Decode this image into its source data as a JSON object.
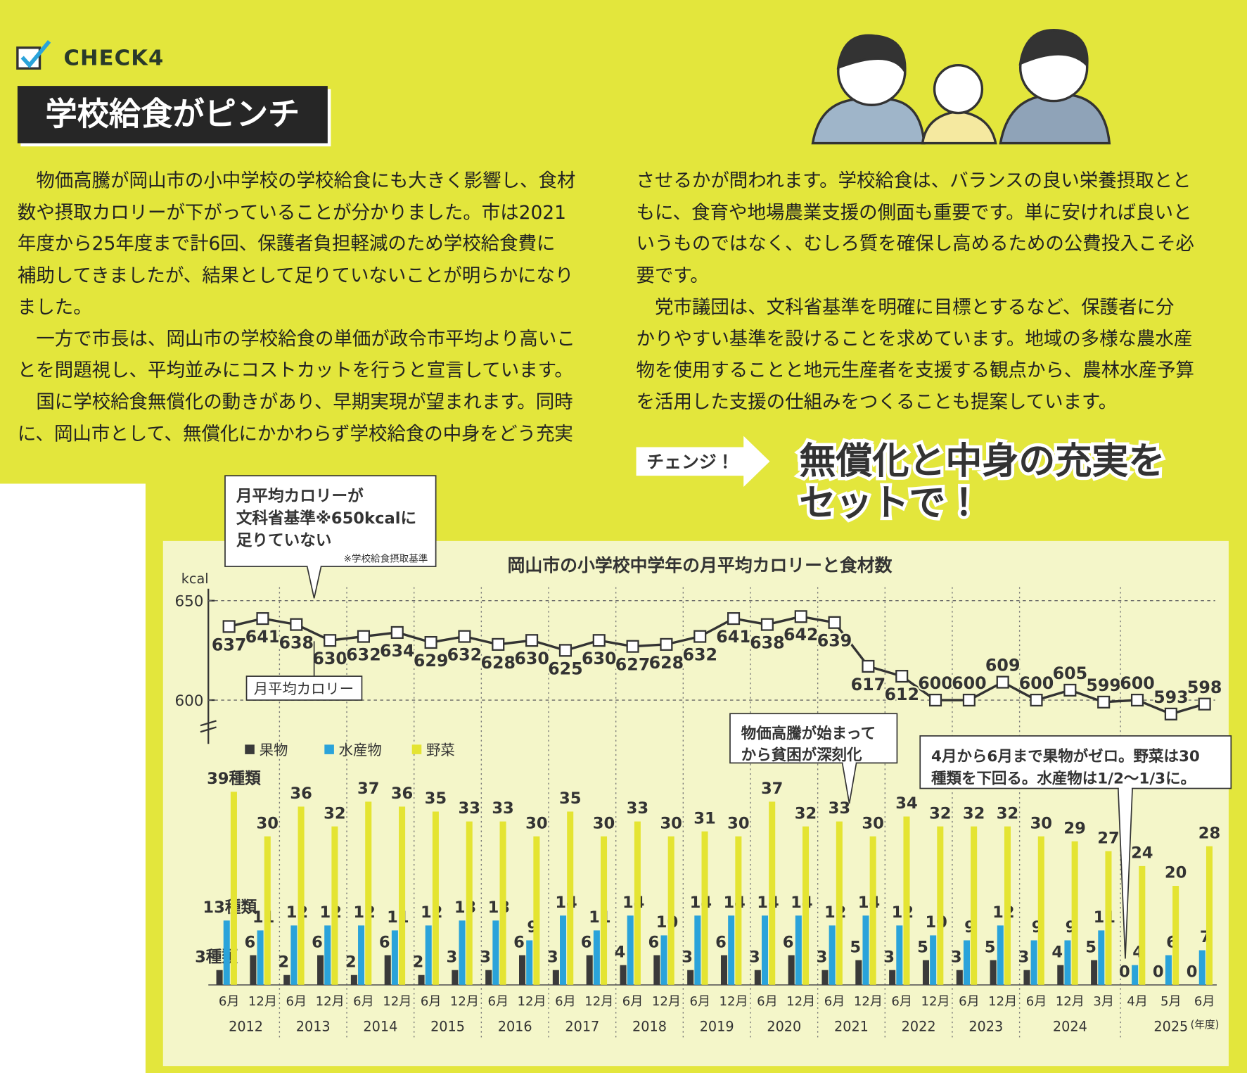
{
  "header": {
    "check": "CHECK4",
    "title": "学校給食がピンチ"
  },
  "body": {
    "left": [
      "　物価高騰が岡山市の小中学校の学校給食にも大きく影響し、食材",
      "数や摂取カロリーが下がっていることが分かりました。市は2021",
      "年度から25年度まで計6回、保護者負担軽減のため学校給食費に",
      "補助してきましたが、結果として足りていないことが明らかになり",
      "ました。",
      "　一方で市長は、岡山市の学校給食の単価が政令市平均より高いこ",
      "とを問題視し、平均並みにコストカットを行うと宣言しています。",
      "　国に学校給食無償化の動きがあり、早期実現が望まれます。同時",
      "に、岡山市として、無償化にかかわらず学校給食の中身をどう充実"
    ],
    "right": [
      "させるかが問われます。学校給食は、バランスの良い栄養摂取とと",
      "もに、食育や地場農業支援の側面も重要です。単に安ければ良いと",
      "いうものではなく、むしろ質を確保し高めるための公費投入こそ必",
      "要です。",
      "　党市議団は、文科省基準を明確に目標とするなど、保護者に分",
      "かりやすい基準を設けることを求めています。地域の多様な農水産",
      "物を使用することと地元生産者を支援する観点から、農林水産予算",
      "を活用した支援の仕組みをつくることも提案しています。"
    ]
  },
  "change": {
    "tag": "チェンジ！",
    "lines": [
      "無償化と中身の充実を",
      "セットで！"
    ]
  },
  "chart_data": {
    "type": "bar_line",
    "title": "岡山市の小学校中学年の月平均カロリーと食材数",
    "y_label": "kcal",
    "x_unit_label": "(年度)",
    "year_groups": [
      {
        "label": "2012",
        "months": [
          "6月",
          "12月"
        ]
      },
      {
        "label": "2013",
        "months": [
          "6月",
          "12月"
        ]
      },
      {
        "label": "2014",
        "months": [
          "6月",
          "12月"
        ]
      },
      {
        "label": "2015",
        "months": [
          "6月",
          "12月"
        ]
      },
      {
        "label": "2016",
        "months": [
          "6月",
          "12月"
        ]
      },
      {
        "label": "2017",
        "months": [
          "6月",
          "12月"
        ]
      },
      {
        "label": "2018",
        "months": [
          "6月",
          "12月"
        ]
      },
      {
        "label": "2019",
        "months": [
          "6月",
          "12月"
        ]
      },
      {
        "label": "2020",
        "months": [
          "6月",
          "12月"
        ]
      },
      {
        "label": "2021",
        "months": [
          "6月",
          "12月"
        ]
      },
      {
        "label": "2022",
        "months": [
          "6月",
          "12月"
        ]
      },
      {
        "label": "2023",
        "months": [
          "6月",
          "12月"
        ]
      },
      {
        "label": "2024",
        "months": [
          "6月",
          "12月",
          "3月"
        ]
      },
      {
        "label": "2025",
        "months": [
          "4月",
          "5月",
          "6月"
        ]
      }
    ],
    "ylim": [
      594,
      656
    ],
    "yticks": [
      600,
      650
    ],
    "y2lim": [
      0,
      40
    ],
    "grid": true,
    "series": [
      {
        "name": "月平均カロリー",
        "type": "line",
        "color": "#333333",
        "values": [
          637,
          641,
          638,
          630,
          632,
          634,
          629,
          632,
          628,
          630,
          625,
          630,
          627,
          628,
          632,
          641,
          638,
          642,
          639,
          617,
          612,
          600,
          600,
          609,
          600,
          605,
          599,
          600,
          593,
          598
        ]
      },
      {
        "name": "果物",
        "type": "bar",
        "axis": "y2",
        "color": "#3a3a3a",
        "values": [
          3,
          6,
          2,
          6,
          2,
          6,
          2,
          3,
          3,
          6,
          3,
          6,
          4,
          6,
          3,
          6,
          3,
          6,
          3,
          5,
          3,
          5,
          3,
          5,
          3,
          4,
          5,
          0,
          0,
          0
        ],
        "value_labels": [
          "3種類",
          "6",
          "2",
          "6",
          "2",
          "6",
          "2",
          "3",
          "3",
          "6",
          "3",
          "6",
          "4",
          "6",
          "3",
          "6",
          "3",
          "6",
          "3",
          "5",
          "3",
          "5",
          "3",
          "5",
          "3",
          "4",
          "5",
          "0",
          "0",
          "0"
        ]
      },
      {
        "name": "水産物",
        "type": "bar",
        "axis": "y2",
        "color": "#2aa3da",
        "values": [
          13,
          11,
          12,
          12,
          12,
          11,
          12,
          13,
          13,
          9,
          14,
          11,
          14,
          10,
          14,
          14,
          14,
          14,
          12,
          14,
          12,
          10,
          9,
          12,
          9,
          9,
          11,
          4,
          6,
          7
        ],
        "value_labels": [
          "13種類",
          "11",
          "12",
          "12",
          "12",
          "11",
          "12",
          "13",
          "13",
          "9",
          "14",
          "11",
          "14",
          "10",
          "14",
          "14",
          "14",
          "14",
          "12",
          "14",
          "12",
          "10",
          "9",
          "12",
          "9",
          "9",
          "11",
          "4",
          "6",
          "7"
        ]
      },
      {
        "name": "野菜",
        "type": "bar",
        "axis": "y2",
        "color": "#e4e432",
        "values": [
          39,
          30,
          36,
          32,
          37,
          36,
          35,
          33,
          33,
          30,
          35,
          30,
          33,
          30,
          31,
          30,
          37,
          32,
          33,
          30,
          34,
          32,
          32,
          32,
          30,
          29,
          27,
          24,
          20,
          28
        ],
        "value_labels": [
          "39種類",
          "30",
          "36",
          "32",
          "37",
          "36",
          "35",
          "33",
          "33",
          "30",
          "35",
          "30",
          "33",
          "30",
          "31",
          "30",
          "37",
          "32",
          "33",
          "30",
          "34",
          "32",
          "32",
          "32",
          "30",
          "29",
          "27",
          "24",
          "20",
          "28"
        ]
      }
    ],
    "annotations": [
      {
        "lines": [
          "月平均カロリーが",
          "文科省基準※650kcalに",
          "足りていない"
        ],
        "note": "※学校給食摂取基準"
      },
      {
        "lines": [
          "物価高騰が始まって",
          "から貧困が深刻化"
        ]
      },
      {
        "lines": [
          "4月から6月まで果物がゼロ。野菜は30",
          "種類を下回る。水産物は1/2〜1/3に。"
        ]
      }
    ]
  }
}
